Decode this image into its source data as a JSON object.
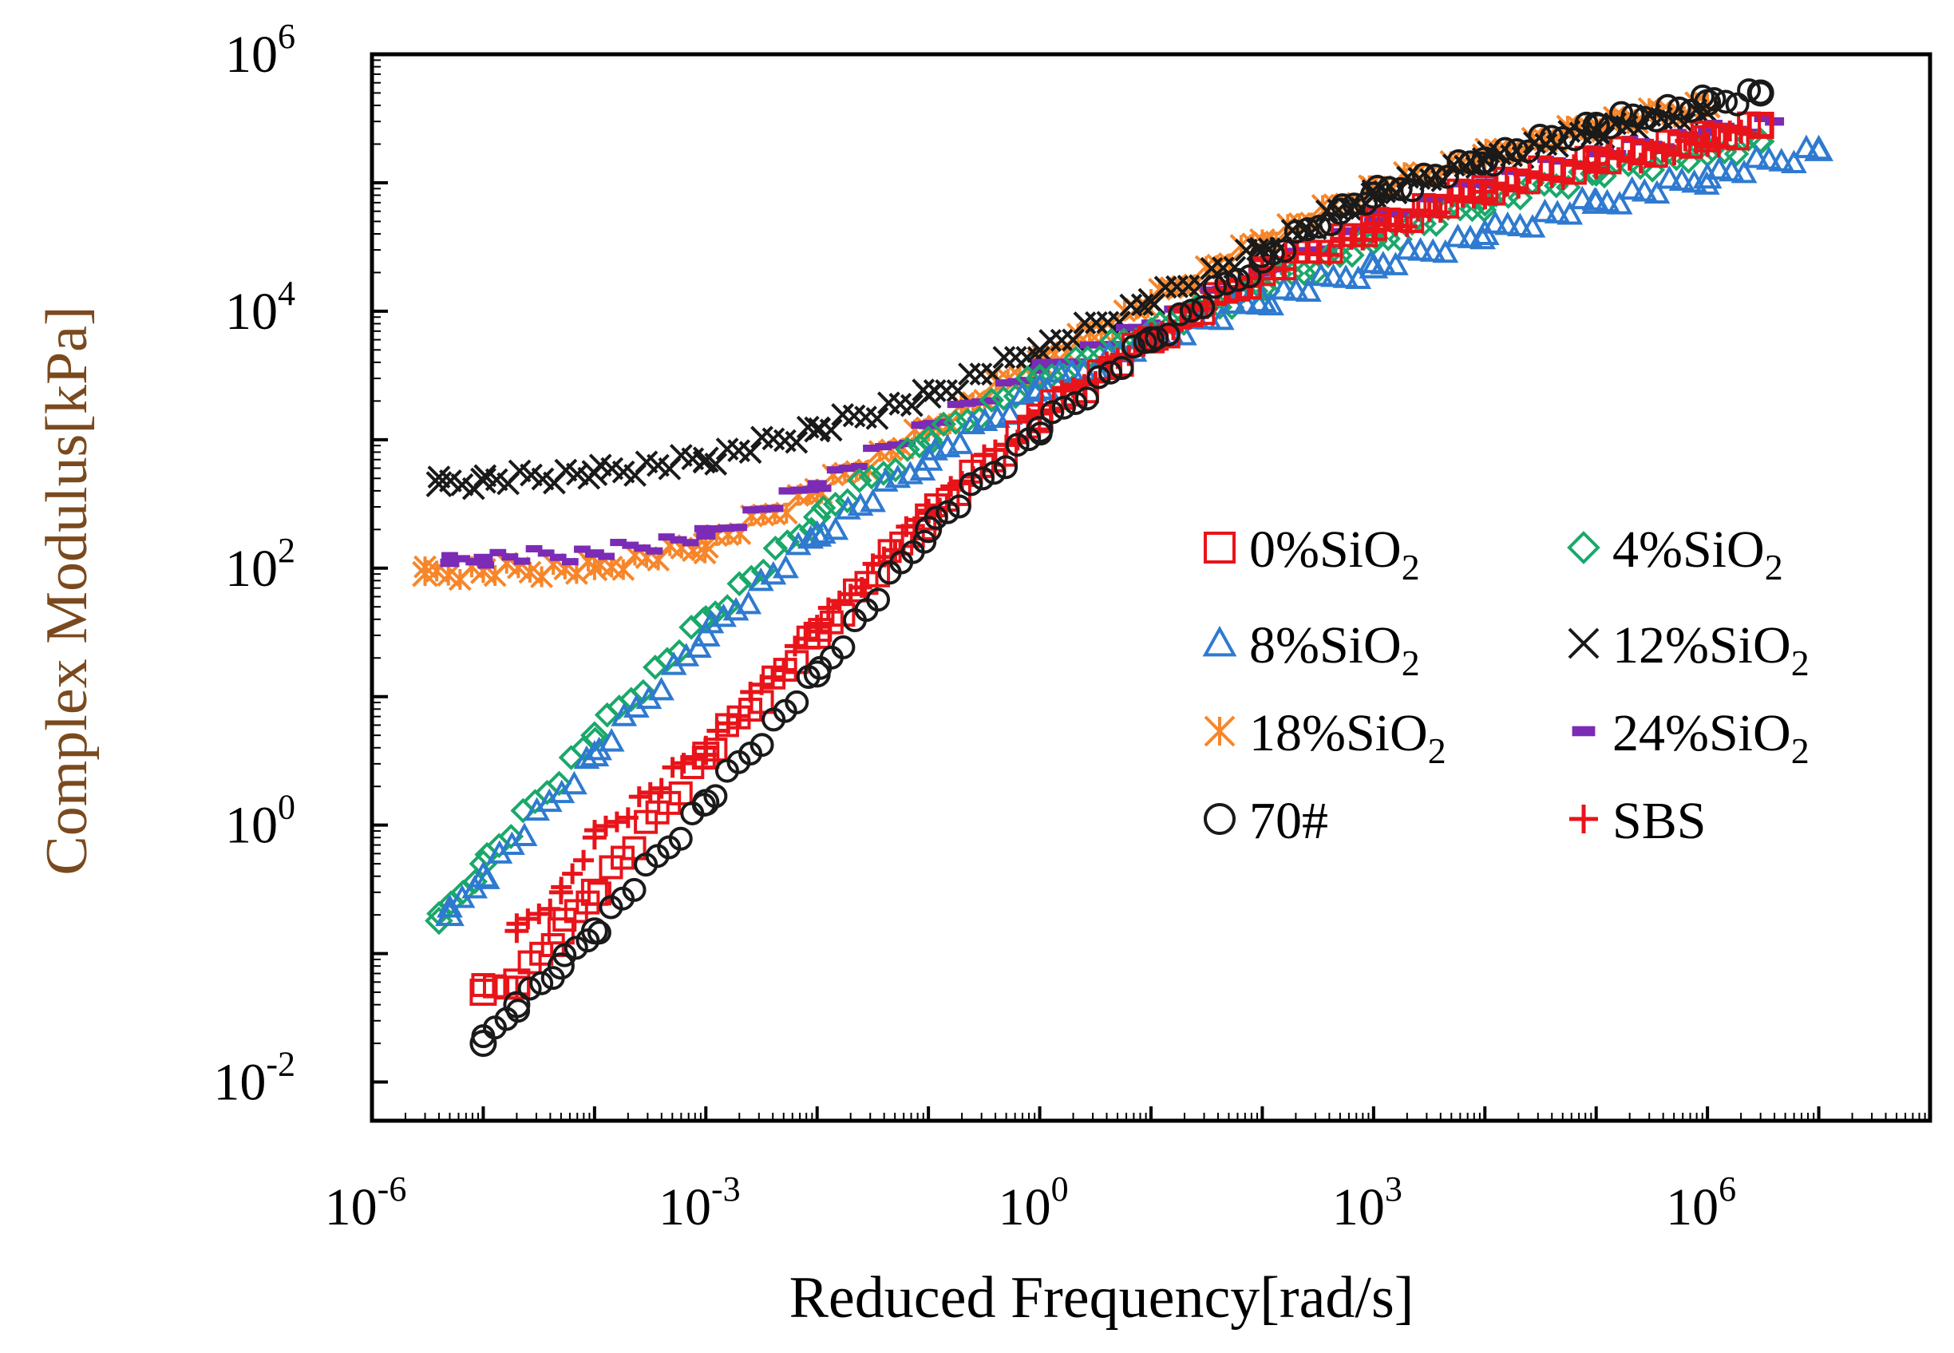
{
  "chart_data": {
    "type": "scatter",
    "xscale": "log",
    "yscale": "log",
    "xlabel": "Reduced Frequency[rad/s]",
    "ylabel": "Complex Modulus[kPa]",
    "xlim": [
      1e-06,
      100000000.0
    ],
    "ylim": [
      0.005,
      1000000
    ],
    "xticks": [
      {
        "value": 1e-06,
        "base": "10",
        "exp": "-6"
      },
      {
        "value": 0.001,
        "base": "10",
        "exp": "-3"
      },
      {
        "value": 1,
        "base": "10",
        "exp": "0"
      },
      {
        "value": 1000.0,
        "base": "10",
        "exp": "3"
      },
      {
        "value": 1000000.0,
        "base": "10",
        "exp": "6"
      }
    ],
    "yticks": [
      {
        "value": 0.01,
        "base": "10",
        "exp": "-2"
      },
      {
        "value": 1,
        "base": "10",
        "exp": "0"
      },
      {
        "value": 100,
        "base": "10",
        "exp": "2"
      },
      {
        "value": 10000,
        "base": "10",
        "exp": "4"
      },
      {
        "value": 1000000,
        "base": "10",
        "exp": "6"
      }
    ],
    "legend_position": "center-right",
    "series": [
      {
        "name": "0%SiO",
        "sub": "2",
        "marker": "square",
        "color": "#e8141a",
        "x": [
          1e-05,
          2e-05,
          5e-05,
          0.0001,
          0.001,
          0.01,
          0.1,
          1,
          10,
          100,
          1000.0,
          10000.0,
          100000.0,
          1000000.0,
          3000000.0
        ],
        "y": [
          0.05,
          0.06,
          0.15,
          0.3,
          3.5,
          30,
          250,
          1500,
          6000,
          20000,
          45000,
          90000,
          150000,
          220000,
          280000
        ]
      },
      {
        "name": "4%SiO",
        "sub": "2",
        "marker": "diamond",
        "color": "#1aa86a",
        "x": [
          4e-06,
          1e-05,
          0.0001,
          0.001,
          0.01,
          0.1,
          1,
          10,
          100,
          1000.0,
          10000.0,
          100000.0,
          1000000.0,
          3000000.0
        ],
        "y": [
          0.18,
          0.5,
          5,
          40,
          250,
          1000,
          3000,
          7000,
          15000,
          35000,
          70000,
          120000,
          170000,
          210000
        ]
      },
      {
        "name": "8%SiO",
        "sub": "2",
        "marker": "triangle",
        "color": "#2f7ad0",
        "x": [
          5e-06,
          1e-05,
          0.0001,
          0.001,
          0.01,
          0.1,
          1,
          10,
          100,
          1000.0,
          10000.0,
          100000.0,
          1000000.0,
          10000000.0
        ],
        "y": [
          0.2,
          0.4,
          3.5,
          30,
          180,
          700,
          2500,
          6000,
          12000,
          22000,
          40000,
          70000,
          110000,
          180000
        ]
      },
      {
        "name": "12%SiO",
        "sub": "2",
        "marker": "cross",
        "color": "#1a1a1a",
        "x": [
          4e-06,
          1e-05,
          0.0001,
          0.001,
          0.01,
          0.1,
          1,
          10,
          100,
          1000.0,
          10000.0,
          100000.0,
          1000000.0
        ],
        "y": [
          450,
          480,
          550,
          700,
          1200,
          2200,
          5000,
          12000,
          30000,
          80000,
          150000,
          250000,
          350000
        ]
      },
      {
        "name": "18%SiO",
        "sub": "2",
        "marker": "asterisk",
        "color": "#f7862a",
        "x": [
          3e-06,
          1e-05,
          0.0001,
          0.001,
          0.01,
          0.1,
          1,
          10,
          100,
          1000.0,
          10000.0,
          100000.0,
          1000000.0
        ],
        "y": [
          90,
          95,
          100,
          150,
          400,
          1200,
          4000,
          12000,
          35000,
          90000,
          160000,
          280000,
          400000
        ]
      },
      {
        "name": "24%SiO",
        "sub": "2",
        "marker": "dash",
        "color": "#7b2bb5",
        "x": [
          5e-06,
          1e-05,
          0.0001,
          0.001,
          0.01,
          0.1,
          1,
          10,
          100,
          1000.0,
          10000.0,
          100000.0,
          1000000.0,
          4000000.0
        ],
        "y": [
          110,
          120,
          130,
          180,
          450,
          1300,
          3500,
          8000,
          20000,
          50000,
          100000,
          170000,
          250000,
          300000
        ]
      },
      {
        "name": "70#",
        "sub": "",
        "marker": "circle",
        "color": "#1a1a1a",
        "x": [
          1e-05,
          2e-05,
          5e-05,
          0.0001,
          0.001,
          0.01,
          0.1,
          1,
          10,
          100,
          500,
          1000.0,
          10000.0,
          100000.0,
          1000000.0,
          3000000.0
        ],
        "y": [
          0.02,
          0.04,
          0.08,
          0.15,
          1.5,
          15,
          200,
          1200,
          6000,
          25000,
          60000,
          80000,
          150000,
          280000,
          420000,
          500000
        ]
      },
      {
        "name": "SBS",
        "sub": "",
        "marker": "plus",
        "color": "#e8141a",
        "x": [
          2e-05,
          5e-05,
          0.0001,
          0.001,
          0.01,
          0.1,
          1,
          10,
          100,
          1000.0,
          10000.0,
          100000.0,
          1000000.0,
          2000000.0
        ],
        "y": [
          0.15,
          0.3,
          0.8,
          4,
          35,
          280,
          1600,
          6500,
          20000,
          42000,
          85000,
          140000,
          200000,
          250000
        ]
      }
    ]
  }
}
